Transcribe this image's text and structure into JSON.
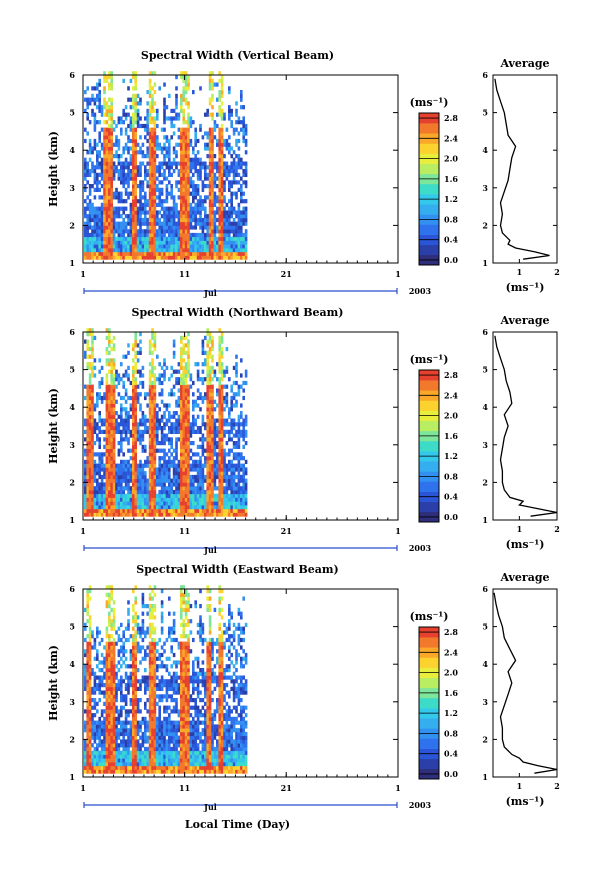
{
  "chart_data": [
    {
      "type": "heatmap",
      "title": "Spectral Width (Vertical Beam)",
      "ylabel": "Height (km)",
      "xlabel": "",
      "x_ticks": [
        "1",
        "11",
        "21",
        "1"
      ],
      "y_ticks": [
        "1",
        "2",
        "3",
        "4",
        "5",
        "6"
      ],
      "xlim_days": [
        1,
        32
      ],
      "ylim": [
        1,
        6
      ],
      "data_end_day": 17,
      "month_label": "Jul",
      "year_label": "2003",
      "colorbar": {
        "unit": "(ms⁻¹)",
        "ticks": [
          "0.0",
          "0.4",
          "0.8",
          "1.2",
          "1.6",
          "2.0",
          "2.4",
          "2.8"
        ],
        "range": [
          0,
          3.0
        ]
      },
      "high_width_columns_day": [
        3.2,
        3.5,
        5.9,
        7.7,
        10.7,
        11.0,
        13.5,
        14.4
      ],
      "average_profile": {
        "title": "Average",
        "xlabel": "(ms⁻¹)",
        "x_ticks": [
          "1",
          "2"
        ],
        "y_ticks": [
          "1",
          "2",
          "3",
          "4",
          "5",
          "6"
        ],
        "xlim": [
          0.3,
          2.0
        ],
        "height_km": [
          1.1,
          1.2,
          1.3,
          1.4,
          1.5,
          1.6,
          1.8,
          2.0,
          2.3,
          2.6,
          2.9,
          3.2,
          3.5,
          3.8,
          4.1,
          4.4,
          4.7,
          5.0,
          5.3,
          5.6,
          5.9
        ],
        "width_ms": [
          1.1,
          1.8,
          1.4,
          0.9,
          0.7,
          0.75,
          0.55,
          0.5,
          0.55,
          0.5,
          0.6,
          0.7,
          0.75,
          0.8,
          0.9,
          0.7,
          0.65,
          0.6,
          0.5,
          0.4,
          0.35
        ]
      }
    },
    {
      "type": "heatmap",
      "title": "Spectral Width (Northward Beam)",
      "ylabel": "Height (km)",
      "xlabel": "",
      "x_ticks": [
        "1",
        "11",
        "21",
        "1"
      ],
      "y_ticks": [
        "1",
        "2",
        "3",
        "4",
        "5",
        "6"
      ],
      "xlim_days": [
        1,
        32
      ],
      "ylim": [
        1,
        6
      ],
      "data_end_day": 17,
      "month_label": "Jul",
      "year_label": "2003",
      "colorbar": {
        "unit": "(ms⁻¹)",
        "ticks": [
          "0.0",
          "0.4",
          "0.8",
          "1.2",
          "1.6",
          "2.0",
          "2.4",
          "2.8"
        ],
        "range": [
          0,
          3.0
        ]
      },
      "high_width_columns_day": [
        1.6,
        3.5,
        3.8,
        5.9,
        7.7,
        10.7,
        11.0,
        13.4,
        14.5
      ],
      "average_profile": {
        "title": "Average",
        "xlabel": "(ms⁻¹)",
        "x_ticks": [
          "1",
          "2"
        ],
        "y_ticks": [
          "1",
          "2",
          "3",
          "4",
          "5",
          "6"
        ],
        "xlim": [
          0.3,
          2.0
        ],
        "height_km": [
          1.1,
          1.2,
          1.3,
          1.4,
          1.5,
          1.6,
          1.8,
          2.0,
          2.3,
          2.6,
          2.9,
          3.2,
          3.5,
          3.8,
          4.1,
          4.4,
          4.7,
          5.0,
          5.3,
          5.6,
          5.9
        ],
        "width_ms": [
          1.3,
          2.0,
          1.5,
          1.0,
          1.1,
          0.75,
          0.6,
          0.55,
          0.55,
          0.5,
          0.55,
          0.6,
          0.7,
          0.6,
          0.8,
          0.75,
          0.65,
          0.6,
          0.5,
          0.4,
          0.35
        ]
      }
    },
    {
      "type": "heatmap",
      "title": "Spectral Width (Eastward Beam)",
      "ylabel": "Height (km)",
      "xlabel": "Local Time (Day)",
      "x_ticks": [
        "1",
        "11",
        "21",
        "1"
      ],
      "y_ticks": [
        "1",
        "2",
        "3",
        "4",
        "5",
        "6"
      ],
      "xlim_days": [
        1,
        32
      ],
      "ylim": [
        1,
        6
      ],
      "data_end_day": 17,
      "month_label": "Jul",
      "year_label": "2003",
      "colorbar": {
        "unit": "(ms⁻¹)",
        "ticks": [
          "0.0",
          "0.4",
          "0.8",
          "1.2",
          "1.6",
          "2.0",
          "2.4",
          "2.8"
        ],
        "range": [
          0,
          3.0
        ]
      },
      "high_width_columns_day": [
        1.5,
        3.5,
        3.8,
        6.0,
        7.7,
        10.8,
        11.1,
        13.3,
        14.5
      ],
      "average_profile": {
        "title": "Average",
        "xlabel": "(ms⁻¹)",
        "x_ticks": [
          "1",
          "2"
        ],
        "y_ticks": [
          "1",
          "2",
          "3",
          "4",
          "5",
          "6"
        ],
        "xlim": [
          0.3,
          2.0
        ],
        "height_km": [
          1.1,
          1.2,
          1.3,
          1.4,
          1.5,
          1.6,
          1.8,
          2.0,
          2.3,
          2.6,
          2.9,
          3.2,
          3.5,
          3.8,
          4.1,
          4.4,
          4.7,
          5.0,
          5.3,
          5.6,
          5.9
        ],
        "width_ms": [
          1.4,
          2.0,
          1.5,
          1.1,
          1.0,
          0.8,
          0.6,
          0.55,
          0.55,
          0.5,
          0.6,
          0.7,
          0.8,
          0.7,
          0.9,
          0.75,
          0.6,
          0.55,
          0.45,
          0.38,
          0.33
        ]
      }
    }
  ]
}
